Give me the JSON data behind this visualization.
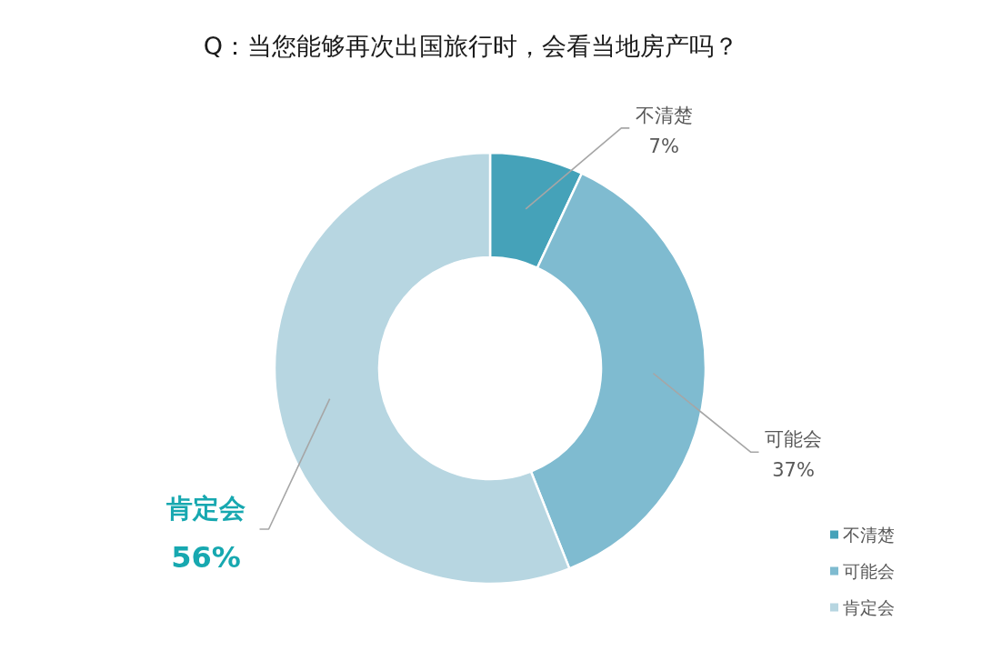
{
  "chart_data": {
    "type": "donut",
    "title": "Q：当您能够再次出国旅行时，会看当地房产吗？",
    "categories": [
      "不清楚",
      "可能会",
      "肯定会"
    ],
    "values": [
      7,
      37,
      56
    ],
    "colors": [
      "#45a2b9",
      "#7fbbd0",
      "#b7d6e1"
    ],
    "value_labels": [
      "7%",
      "37%",
      "56%"
    ],
    "legend": "bottom right"
  }
}
